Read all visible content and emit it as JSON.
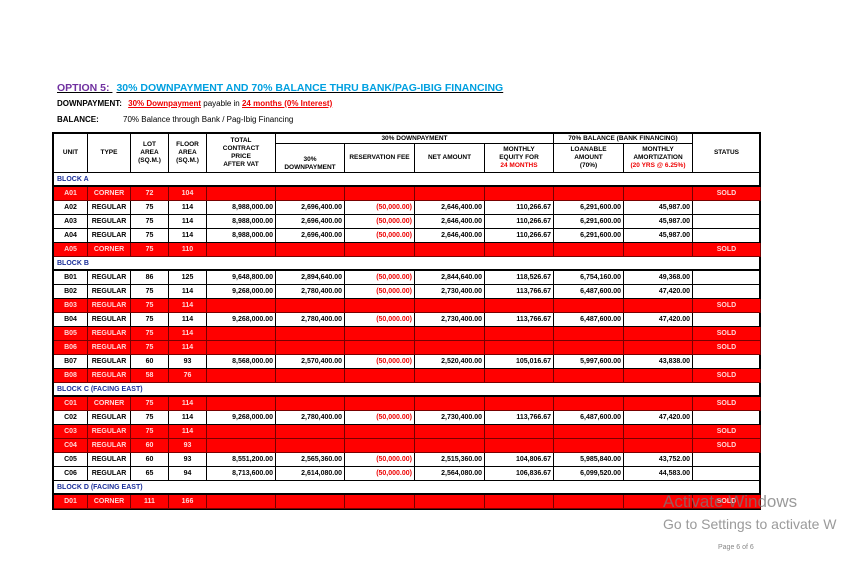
{
  "header": {
    "title_prefix": "OPTION 5:",
    "title": "30% DOWNPAYMENT AND 70% BALANCE THRU BANK/PAG-IBIG FINANCING",
    "downpayment_label": "DOWNPAYMENT:",
    "downpayment_terms": [
      "30% Downpayment",
      "payable in",
      "24 months (0% Interest)"
    ],
    "balance_label": "BALANCE:",
    "balance_text": "70% Balance through Bank / Pag-Ibig Financing"
  },
  "table": {
    "group_headers": [
      "30% DOWNPAYMENT",
      "70% BALANCE (BANK FINANCING)"
    ],
    "columns": [
      [
        "UNIT"
      ],
      [
        "TYPE"
      ],
      [
        "LOT",
        "AREA",
        "(SQ.M.)"
      ],
      [
        "FLOOR",
        "AREA",
        "(SQ.M.)"
      ],
      [
        "TOTAL",
        "CONTRACT",
        "PRICE",
        "AFTER VAT"
      ],
      [
        "30%",
        "DOWNPAYMENT"
      ],
      [
        "RESERVATION FEE"
      ],
      [
        "NET AMOUNT"
      ],
      [
        "MONTHLY",
        "EQUITY FOR",
        "24 MONTHS"
      ],
      [
        "LOANABLE",
        "AMOUNT",
        "(70%)"
      ],
      [
        "MONTHLY",
        "AMORTIZATION",
        "(20 YRS @ 6.25%)"
      ],
      [
        "STATUS"
      ]
    ],
    "sections": [
      {
        "label": "BLOCK A",
        "rows": [
          {
            "cells": [
              "A01",
              "CORNER",
              "72",
              "104"
            ],
            "status": "SOLD"
          },
          {
            "cells": [
              "A02",
              "REGULAR",
              "75",
              "114",
              "8,988,000.00",
              "2,696,400.00",
              "(50,000.00)",
              "2,646,400.00",
              "110,266.67",
              "6,291,600.00",
              "45,987.00"
            ]
          },
          {
            "cells": [
              "A03",
              "REGULAR",
              "75",
              "114",
              "8,988,000.00",
              "2,696,400.00",
              "(50,000.00)",
              "2,646,400.00",
              "110,266.67",
              "6,291,600.00",
              "45,987.00"
            ]
          },
          {
            "cells": [
              "A04",
              "REGULAR",
              "75",
              "114",
              "8,988,000.00",
              "2,696,400.00",
              "(50,000.00)",
              "2,646,400.00",
              "110,266.67",
              "6,291,600.00",
              "45,987.00"
            ]
          },
          {
            "cells": [
              "A05",
              "CORNER",
              "75",
              "110"
            ],
            "status": "SOLD"
          }
        ]
      },
      {
        "label": "BLOCK B",
        "rows": [
          {
            "cells": [
              "B01",
              "REGULAR",
              "86",
              "125",
              "9,648,800.00",
              "2,894,640.00",
              "(50,000.00)",
              "2,844,640.00",
              "118,526.67",
              "6,754,160.00",
              "49,368.00"
            ]
          },
          {
            "cells": [
              "B02",
              "REGULAR",
              "75",
              "114",
              "9,268,000.00",
              "2,780,400.00",
              "(50,000.00)",
              "2,730,400.00",
              "113,766.67",
              "6,487,600.00",
              "47,420.00"
            ]
          },
          {
            "cells": [
              "B03",
              "REGULAR",
              "75",
              "114"
            ],
            "status": "SOLD"
          },
          {
            "cells": [
              "B04",
              "REGULAR",
              "75",
              "114",
              "9,268,000.00",
              "2,780,400.00",
              "(50,000.00)",
              "2,730,400.00",
              "113,766.67",
              "6,487,600.00",
              "47,420.00"
            ]
          },
          {
            "cells": [
              "B05",
              "REGULAR",
              "75",
              "114"
            ],
            "status": "SOLD"
          },
          {
            "cells": [
              "B06",
              "REGULAR",
              "75",
              "114"
            ],
            "status": "SOLD"
          },
          {
            "cells": [
              "B07",
              "REGULAR",
              "60",
              "93",
              "8,568,000.00",
              "2,570,400.00",
              "(50,000.00)",
              "2,520,400.00",
              "105,016.67",
              "5,997,600.00",
              "43,838.00"
            ]
          },
          {
            "cells": [
              "B08",
              "REGULAR",
              "58",
              "76"
            ],
            "status": "SOLD"
          }
        ]
      },
      {
        "label": "BLOCK C (FACING EAST)",
        "rows": [
          {
            "cells": [
              "C01",
              "CORNER",
              "75",
              "114"
            ],
            "status": "SOLD"
          },
          {
            "cells": [
              "C02",
              "REGULAR",
              "75",
              "114",
              "9,268,000.00",
              "2,780,400.00",
              "(50,000.00)",
              "2,730,400.00",
              "113,766.67",
              "6,487,600.00",
              "47,420.00"
            ]
          },
          {
            "cells": [
              "C03",
              "REGULAR",
              "75",
              "114"
            ],
            "status": "SOLD"
          },
          {
            "cells": [
              "C04",
              "REGULAR",
              "60",
              "93"
            ],
            "status": "SOLD"
          },
          {
            "cells": [
              "C05",
              "REGULAR",
              "60",
              "93",
              "8,551,200.00",
              "2,565,360.00",
              "(50,000.00)",
              "2,515,360.00",
              "104,806.67",
              "5,985,840.00",
              "43,752.00"
            ]
          },
          {
            "cells": [
              "C06",
              "REGULAR",
              "65",
              "94",
              "8,713,600.00",
              "2,614,080.00",
              "(50,000.00)",
              "2,564,080.00",
              "106,836.67",
              "6,099,520.00",
              "44,583.00"
            ]
          }
        ]
      },
      {
        "label": "BLOCK D (FACING EAST)",
        "rows": [
          {
            "cells": [
              "D01",
              "CORNER",
              "111",
              "166"
            ],
            "status": "SOLD"
          }
        ]
      }
    ]
  },
  "watermark": {
    "line1": "Activate Windows",
    "line2": "Go to Settings to activate W"
  },
  "footer": {
    "page": "Page 6 of 6"
  }
}
